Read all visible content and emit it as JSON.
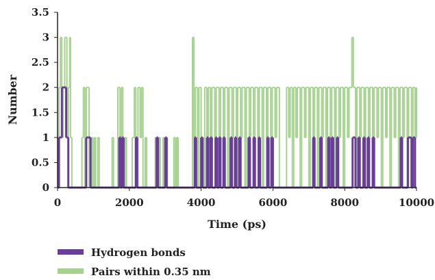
{
  "chart_data": {
    "type": "line",
    "xlabel": "Time (ps)",
    "ylabel": "Number",
    "xlim": [
      0,
      10000
    ],
    "ylim": [
      0,
      3.5
    ],
    "x_ticks": [
      0,
      2000,
      4000,
      6000,
      8000,
      10000
    ],
    "x_tick_labels": [
      "0",
      "2000",
      "4000",
      "6000",
      "8000",
      "10000"
    ],
    "y_ticks": [
      0,
      0.5,
      1,
      1.5,
      2,
      2.5,
      3,
      3.5
    ],
    "y_tick_labels": [
      "0",
      "0.5",
      "1",
      "1.5",
      "2",
      "2.5",
      "3",
      "3.5"
    ],
    "grid": false,
    "legend_position": "bottom-left",
    "series": [
      {
        "name": "Pairs within 0.35 nm",
        "color": "#a6d28f",
        "segments": [
          [
            0,
            1
          ],
          [
            40,
            2
          ],
          [
            80,
            3
          ],
          [
            120,
            1
          ],
          [
            160,
            2
          ],
          [
            200,
            3
          ],
          [
            260,
            1
          ],
          [
            300,
            2
          ],
          [
            340,
            3
          ],
          [
            360,
            1
          ],
          [
            400,
            0
          ],
          [
            680,
            1
          ],
          [
            720,
            2
          ],
          [
            760,
            0
          ],
          [
            800,
            2
          ],
          [
            880,
            0
          ],
          [
            940,
            1
          ],
          [
            980,
            0
          ],
          [
            1020,
            1
          ],
          [
            1060,
            0
          ],
          [
            1120,
            1
          ],
          [
            1160,
            0
          ],
          [
            1520,
            1
          ],
          [
            1560,
            0
          ],
          [
            1680,
            2
          ],
          [
            1740,
            0
          ],
          [
            1780,
            2
          ],
          [
            1820,
            0
          ],
          [
            1880,
            1
          ],
          [
            1920,
            0
          ],
          [
            2080,
            1
          ],
          [
            2140,
            2
          ],
          [
            2180,
            0
          ],
          [
            2240,
            2
          ],
          [
            2300,
            1
          ],
          [
            2340,
            2
          ],
          [
            2380,
            0
          ],
          [
            2440,
            1
          ],
          [
            2480,
            0
          ],
          [
            2720,
            1
          ],
          [
            2760,
            0
          ],
          [
            2820,
            1
          ],
          [
            2860,
            0
          ],
          [
            2940,
            1
          ],
          [
            2980,
            0
          ],
          [
            3020,
            1
          ],
          [
            3060,
            0
          ],
          [
            3240,
            1
          ],
          [
            3280,
            0
          ],
          [
            3320,
            1
          ],
          [
            3360,
            0
          ],
          [
            3760,
            3
          ],
          [
            3800,
            1
          ],
          [
            3840,
            2
          ],
          [
            3900,
            0
          ],
          [
            3940,
            2
          ],
          [
            4000,
            1
          ],
          [
            4060,
            0
          ],
          [
            4100,
            2
          ],
          [
            4160,
            1
          ],
          [
            4200,
            2
          ],
          [
            4260,
            0
          ],
          [
            4300,
            2
          ],
          [
            4380,
            1
          ],
          [
            4420,
            2
          ],
          [
            4500,
            0
          ],
          [
            4540,
            2
          ],
          [
            4620,
            1
          ],
          [
            4660,
            2
          ],
          [
            4740,
            0
          ],
          [
            4780,
            2
          ],
          [
            4860,
            1
          ],
          [
            4900,
            2
          ],
          [
            4980,
            0
          ],
          [
            5020,
            2
          ],
          [
            5100,
            1
          ],
          [
            5140,
            2
          ],
          [
            5220,
            0
          ],
          [
            5260,
            2
          ],
          [
            5340,
            1
          ],
          [
            5380,
            2
          ],
          [
            5460,
            0
          ],
          [
            5500,
            2
          ],
          [
            5580,
            1
          ],
          [
            5620,
            2
          ],
          [
            5700,
            0
          ],
          [
            5740,
            2
          ],
          [
            5820,
            1
          ],
          [
            5860,
            2
          ],
          [
            5940,
            0
          ],
          [
            5980,
            2
          ],
          [
            6060,
            1
          ],
          [
            6100,
            2
          ],
          [
            6180,
            0
          ],
          [
            6380,
            2
          ],
          [
            6440,
            1
          ],
          [
            6480,
            2
          ],
          [
            6540,
            0
          ],
          [
            6580,
            2
          ],
          [
            6640,
            1
          ],
          [
            6680,
            2
          ],
          [
            6760,
            0
          ],
          [
            6800,
            2
          ],
          [
            6880,
            1
          ],
          [
            6920,
            2
          ],
          [
            7000,
            0
          ],
          [
            7040,
            2
          ],
          [
            7120,
            1
          ],
          [
            7160,
            2
          ],
          [
            7240,
            0
          ],
          [
            7280,
            2
          ],
          [
            7360,
            1
          ],
          [
            7400,
            2
          ],
          [
            7480,
            0
          ],
          [
            7520,
            2
          ],
          [
            7600,
            1
          ],
          [
            7640,
            2
          ],
          [
            7720,
            0
          ],
          [
            7760,
            2
          ],
          [
            7840,
            1
          ],
          [
            7880,
            2
          ],
          [
            7960,
            0
          ],
          [
            8000,
            2
          ],
          [
            8080,
            1
          ],
          [
            8120,
            2
          ],
          [
            8200,
            3
          ],
          [
            8240,
            2
          ],
          [
            8300,
            0
          ],
          [
            8340,
            2
          ],
          [
            8420,
            1
          ],
          [
            8460,
            2
          ],
          [
            8540,
            0
          ],
          [
            8580,
            2
          ],
          [
            8660,
            1
          ],
          [
            8700,
            2
          ],
          [
            8780,
            0
          ],
          [
            8820,
            2
          ],
          [
            8900,
            1
          ],
          [
            8940,
            2
          ],
          [
            9020,
            0
          ],
          [
            9060,
            2
          ],
          [
            9140,
            1
          ],
          [
            9180,
            2
          ],
          [
            9260,
            0
          ],
          [
            9300,
            2
          ],
          [
            9380,
            1
          ],
          [
            9420,
            2
          ],
          [
            9500,
            0
          ],
          [
            9540,
            2
          ],
          [
            9620,
            1
          ],
          [
            9660,
            2
          ],
          [
            9740,
            0
          ],
          [
            9780,
            2
          ],
          [
            9860,
            1
          ],
          [
            9900,
            2
          ],
          [
            9960,
            1
          ],
          [
            10000,
            2
          ]
        ]
      },
      {
        "name": "Hydrogen bonds",
        "color": "#6a3d9a",
        "segments": [
          [
            0,
            0
          ],
          [
            40,
            1
          ],
          [
            120,
            2
          ],
          [
            240,
            1
          ],
          [
            300,
            0
          ],
          [
            800,
            1
          ],
          [
            920,
            0
          ],
          [
            1720,
            1
          ],
          [
            1760,
            0
          ],
          [
            1800,
            1
          ],
          [
            1840,
            0
          ],
          [
            2180,
            1
          ],
          [
            2220,
            0
          ],
          [
            2760,
            1
          ],
          [
            2800,
            0
          ],
          [
            3000,
            1
          ],
          [
            3040,
            0
          ],
          [
            3820,
            1
          ],
          [
            3860,
            0
          ],
          [
            4000,
            1
          ],
          [
            4040,
            0
          ],
          [
            4160,
            1
          ],
          [
            4200,
            0
          ],
          [
            4260,
            1
          ],
          [
            4300,
            0
          ],
          [
            4400,
            1
          ],
          [
            4440,
            0
          ],
          [
            4500,
            1
          ],
          [
            4540,
            0
          ],
          [
            4620,
            1
          ],
          [
            4660,
            0
          ],
          [
            4820,
            1
          ],
          [
            4860,
            0
          ],
          [
            4940,
            1
          ],
          [
            4980,
            0
          ],
          [
            5060,
            1
          ],
          [
            5100,
            0
          ],
          [
            5320,
            1
          ],
          [
            5360,
            0
          ],
          [
            5460,
            1
          ],
          [
            5500,
            0
          ],
          [
            5600,
            1
          ],
          [
            5640,
            0
          ],
          [
            5840,
            1
          ],
          [
            5880,
            0
          ],
          [
            5960,
            1
          ],
          [
            6000,
            0
          ],
          [
            7120,
            1
          ],
          [
            7160,
            0
          ],
          [
            7320,
            1
          ],
          [
            7360,
            0
          ],
          [
            7540,
            1
          ],
          [
            7580,
            0
          ],
          [
            7640,
            1
          ],
          [
            7680,
            0
          ],
          [
            7780,
            1
          ],
          [
            7820,
            0
          ],
          [
            8220,
            1
          ],
          [
            8300,
            0
          ],
          [
            8380,
            1
          ],
          [
            8420,
            0
          ],
          [
            8520,
            1
          ],
          [
            8560,
            0
          ],
          [
            8640,
            1
          ],
          [
            8680,
            0
          ],
          [
            8780,
            1
          ],
          [
            8820,
            0
          ],
          [
            9560,
            1
          ],
          [
            9600,
            0
          ],
          [
            9760,
            1
          ],
          [
            9860,
            0
          ],
          [
            9900,
            1
          ],
          [
            9960,
            0
          ]
        ]
      }
    ]
  }
}
